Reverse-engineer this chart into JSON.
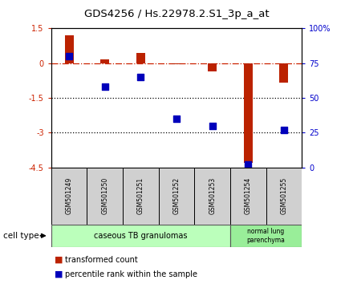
{
  "title": "GDS4256 / Hs.22978.2.S1_3p_a_at",
  "samples": [
    "GSM501249",
    "GSM501250",
    "GSM501251",
    "GSM501252",
    "GSM501253",
    "GSM501254",
    "GSM501255"
  ],
  "transformed_count": [
    1.2,
    0.15,
    0.45,
    -0.05,
    -0.35,
    -4.3,
    -0.85
  ],
  "percentile_rank": [
    80,
    58,
    65,
    35,
    30,
    2,
    27
  ],
  "ylim_left": [
    -4.5,
    1.5
  ],
  "ylim_right": [
    0,
    100
  ],
  "yticks_left": [
    1.5,
    0,
    -1.5,
    -3,
    -4.5
  ],
  "yticks_right": [
    100,
    75,
    50,
    25,
    0
  ],
  "ytick_labels_left": [
    "1.5",
    "0",
    "-1.5",
    "-3",
    "-4.5"
  ],
  "ytick_labels_right": [
    "100%",
    "75",
    "50",
    "25",
    "0"
  ],
  "bar_color_red": "#bb2200",
  "bar_color_blue": "#0000bb",
  "dashed_line_color": "#cc2200",
  "legend_red_label": "transformed count",
  "legend_blue_label": "percentile rank within the sample",
  "bar_width": 0.25,
  "background_color": "#ffffff",
  "tick_label_color_left": "#cc2200",
  "tick_label_color_right": "#0000cc",
  "sample_box_color": "#d0d0d0",
  "cell_type1_color": "#bbffbb",
  "cell_type2_color": "#99ee99"
}
